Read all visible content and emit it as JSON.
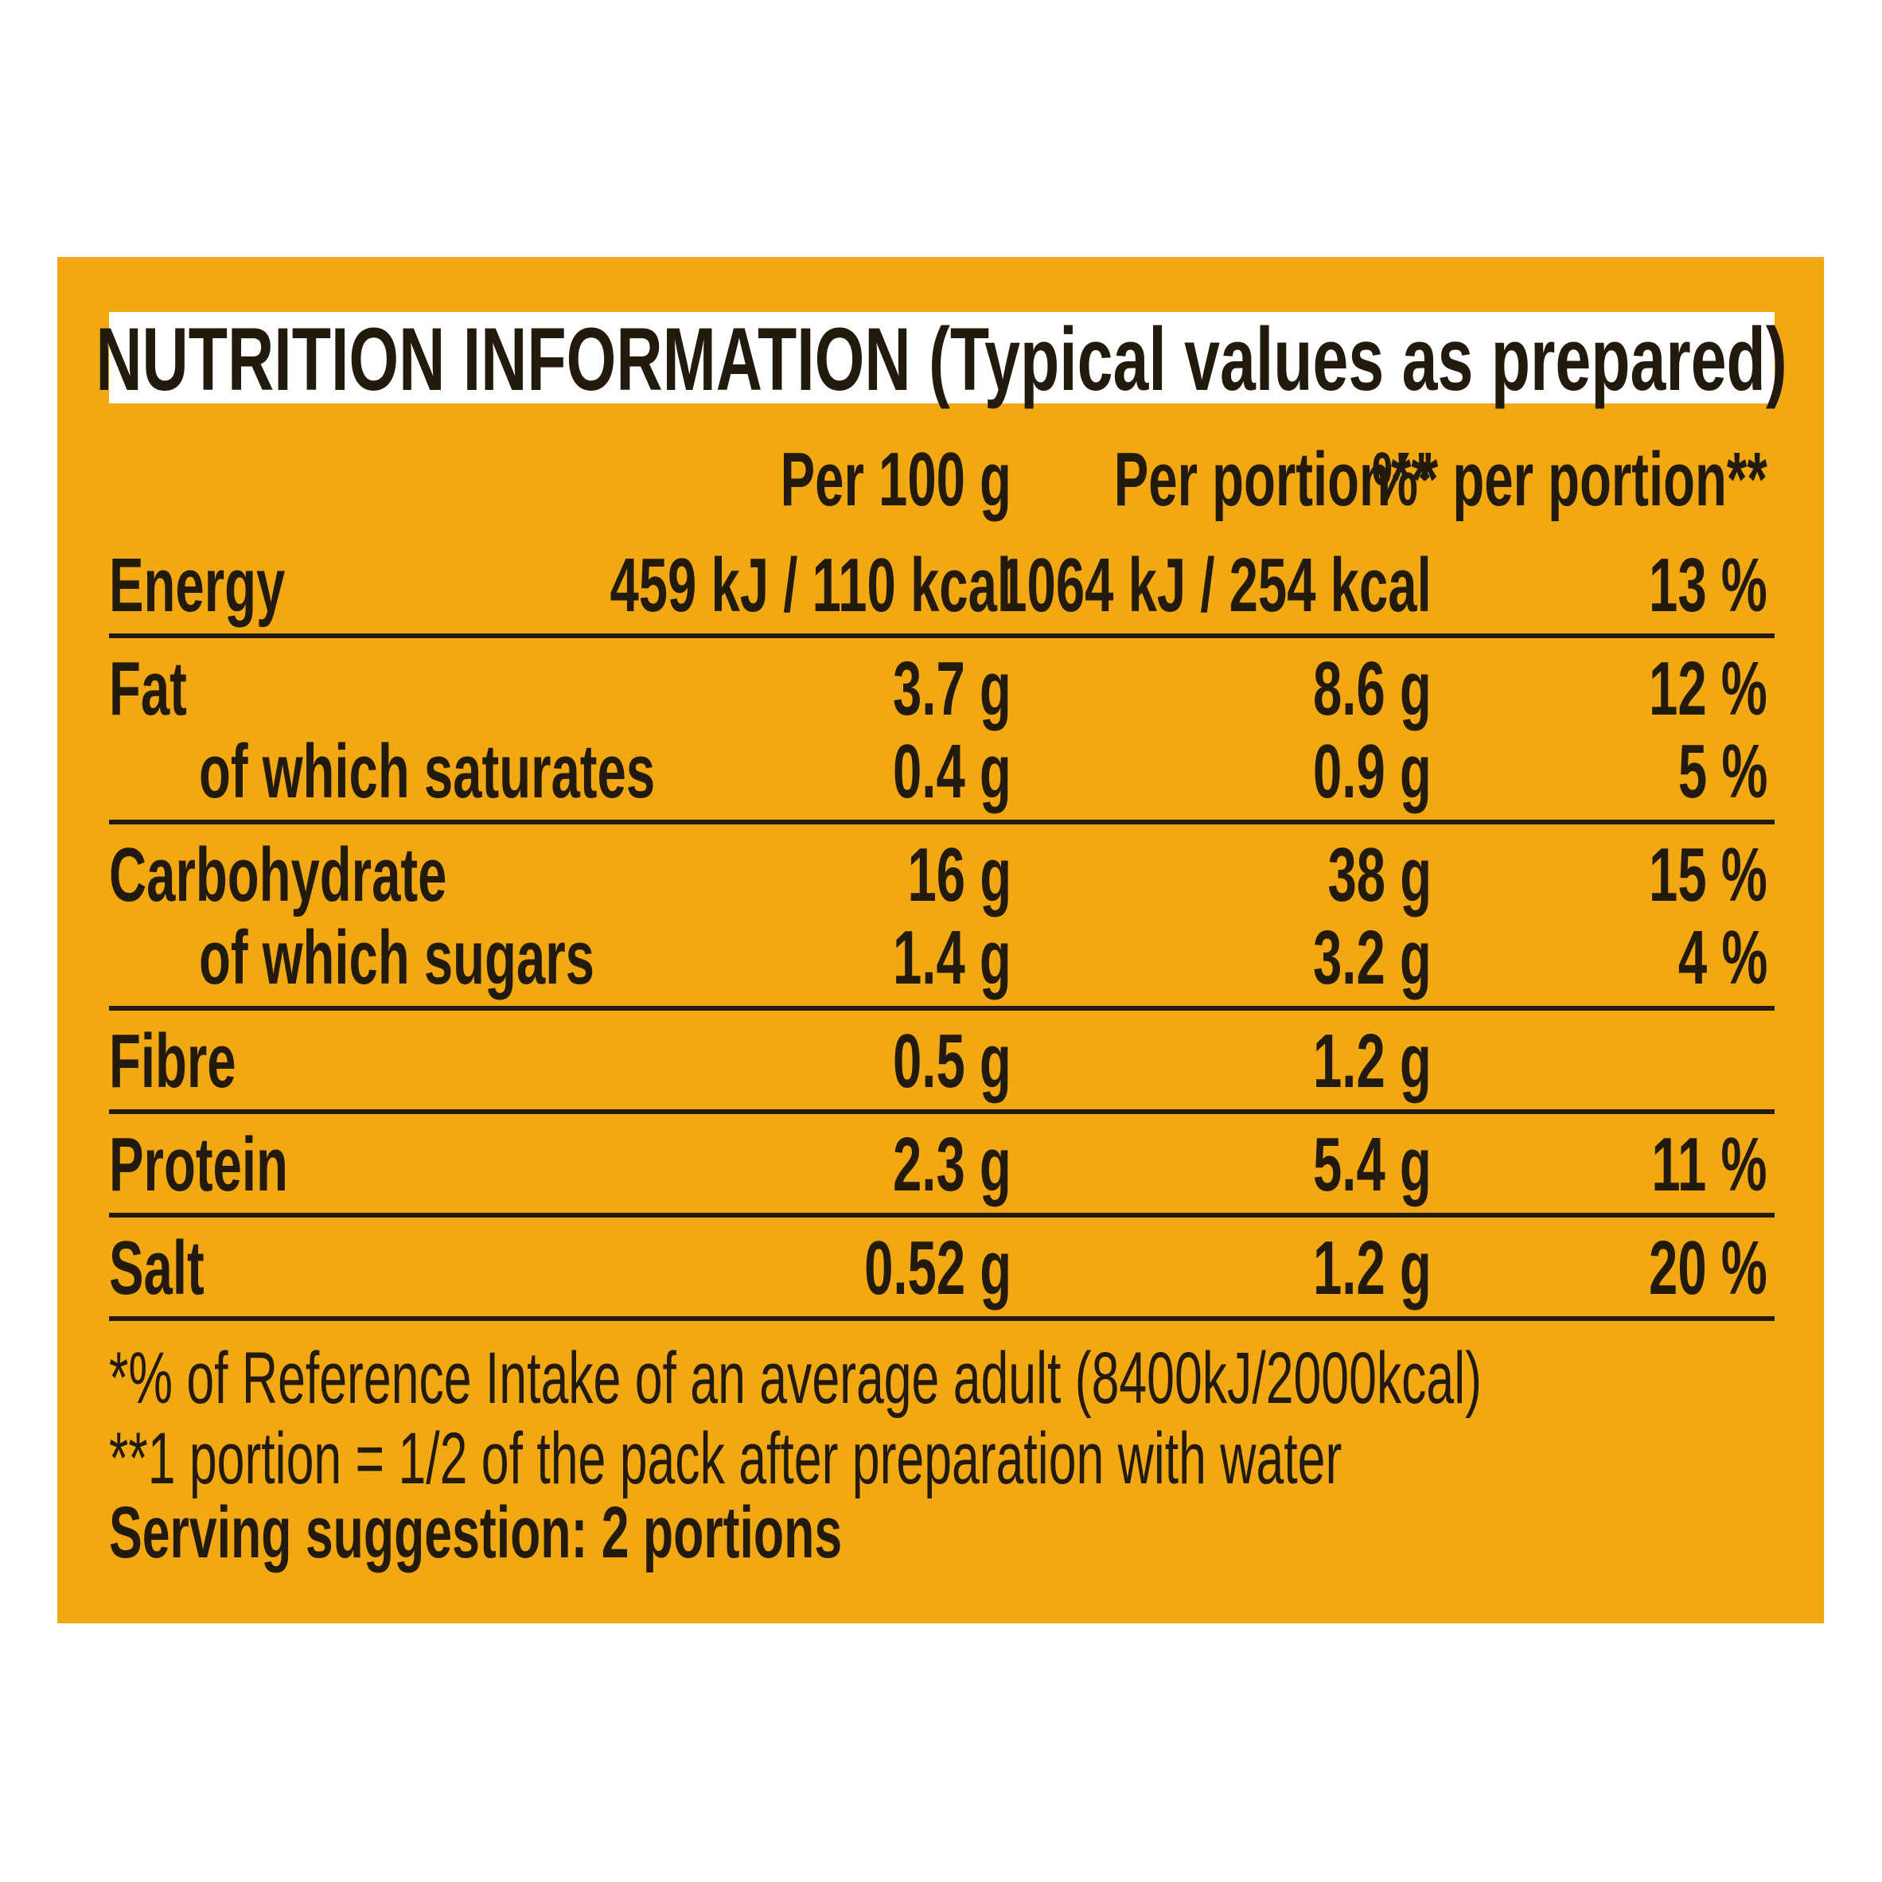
{
  "title": "NUTRITION INFORMATION (Typical values as prepared)",
  "columns": [
    "Per 100 g",
    "Per portion**",
    "%* per portion**"
  ],
  "sections": [
    {
      "label": "Energy",
      "values": [
        "459 kJ / 110 kcal",
        "1064 kJ / 254 kcal",
        "13 %"
      ],
      "sub": []
    },
    {
      "label": "Fat",
      "values": [
        "3.7 g",
        "8.6 g",
        "12 %"
      ],
      "sub": [
        {
          "label": "of which saturates",
          "values": [
            "0.4 g",
            "0.9 g",
            "5 %"
          ]
        }
      ]
    },
    {
      "label": "Carbohydrate",
      "values": [
        "16 g",
        "38 g",
        "15 %"
      ],
      "sub": [
        {
          "label": "of which sugars",
          "values": [
            "1.4 g",
            "3.2 g",
            "4 %"
          ]
        }
      ]
    },
    {
      "label": "Fibre",
      "values": [
        "0.5 g",
        "1.2 g",
        null
      ],
      "sub": []
    },
    {
      "label": "Protein",
      "values": [
        "2.3 g",
        "5.4 g",
        "11 %"
      ],
      "sub": []
    },
    {
      "label": "Salt",
      "values": [
        "0.52 g",
        "1.2 g",
        "20 %"
      ],
      "sub": []
    }
  ],
  "footnotes": [
    "*% of Reference Intake of an average adult (8400kJ/2000kcal)",
    "**1 portion = 1/2 of the pack after preparation with water"
  ],
  "serving": "Serving suggestion: 2 portions"
}
